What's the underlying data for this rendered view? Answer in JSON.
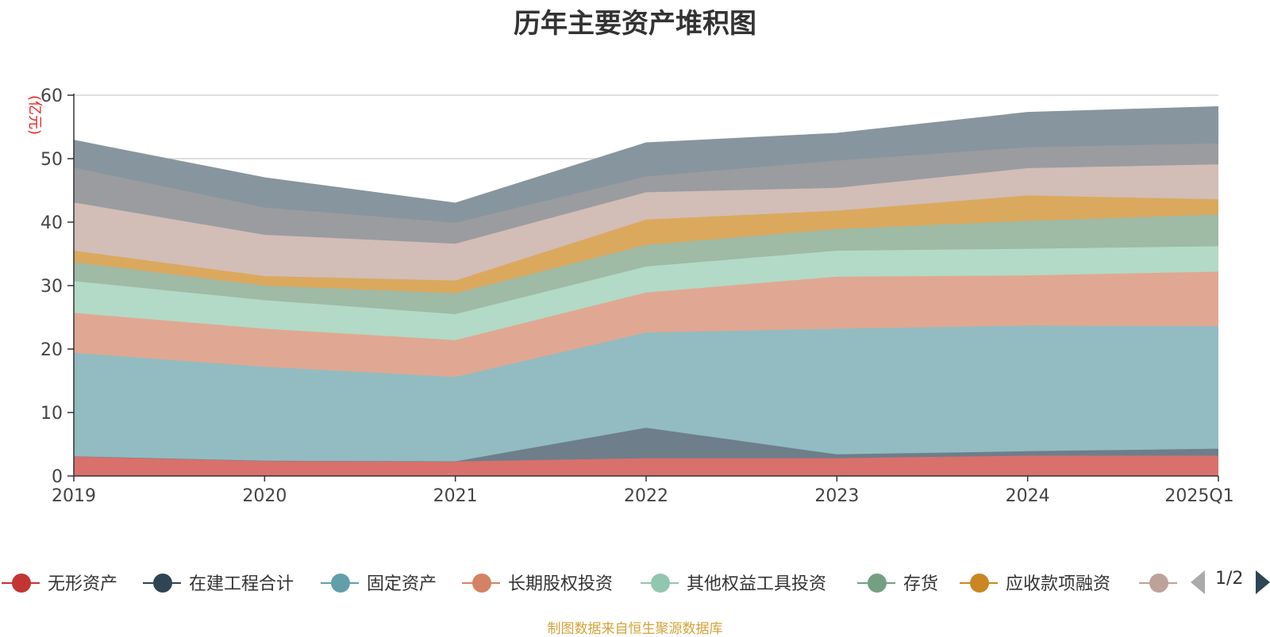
{
  "chart_data": {
    "type": "area",
    "stacked": true,
    "title": "历年主要资产堆积图",
    "unit_label": "(亿元)",
    "categories": [
      "2019",
      "2020",
      "2021",
      "2022",
      "2023",
      "2024",
      "2025Q1"
    ],
    "y_ticks": [
      "0",
      "10",
      "20",
      "30",
      "40",
      "50",
      "60"
    ],
    "ylim": [
      0,
      60
    ],
    "grid": true,
    "legend_position": "bottom",
    "series": [
      {
        "name": "无形资产",
        "color": "#c23531",
        "fill": "#d9706c",
        "values": [
          3.1,
          2.4,
          2.3,
          2.8,
          2.8,
          3.2,
          3.2
        ]
      },
      {
        "name": "在建工程合计",
        "color": "#2f4554",
        "fill": "#6e7e8a",
        "values": [
          0.0,
          0.0,
          0.0,
          4.8,
          0.6,
          0.7,
          1.1
        ]
      },
      {
        "name": "固定资产",
        "color": "#61a0a8",
        "fill": "#92bcc1",
        "values": [
          16.3,
          14.8,
          13.3,
          15.0,
          19.8,
          19.8,
          19.3
        ]
      },
      {
        "name": "长期股权投资",
        "color": "#d48265",
        "fill": "#e0a892",
        "values": [
          6.3,
          6.0,
          5.8,
          6.3,
          8.2,
          7.9,
          8.6
        ]
      },
      {
        "name": "其他权益工具投资",
        "color": "#91c7ae",
        "fill": "#b2dac7",
        "values": [
          5.0,
          4.5,
          4.1,
          4.1,
          4.1,
          4.2,
          4.0
        ]
      },
      {
        "name": "存货",
        "color": "#749f83",
        "fill": "#9fbaa5",
        "values": [
          3.0,
          2.3,
          3.3,
          3.4,
          3.4,
          4.4,
          5.0
        ]
      },
      {
        "name": "应收款项融资",
        "color": "#ca8622",
        "fill": "#dba95e",
        "values": [
          1.8,
          1.5,
          2.0,
          4.0,
          2.9,
          4.0,
          2.4
        ]
      },
      {
        "name": "",
        "color": "#bda29a",
        "fill": "#d2bdb7",
        "values": [
          7.6,
          6.5,
          5.8,
          4.3,
          3.6,
          4.3,
          5.5
        ]
      },
      {
        "name": "",
        "color": "#6e7074",
        "fill": "#9a9ca0",
        "values": [
          5.5,
          4.3,
          3.3,
          2.5,
          4.3,
          3.3,
          3.3
        ]
      },
      {
        "name": "",
        "color": "#546570",
        "fill": "#87959e",
        "values": [
          4.3,
          4.7,
          3.1,
          5.3,
          4.3,
          5.5,
          5.8
        ]
      }
    ]
  },
  "legend": {
    "page_label": "1/2",
    "items": [
      {
        "label": "无形资产",
        "color": "#c23531"
      },
      {
        "label": "在建工程合计",
        "color": "#2f4554"
      },
      {
        "label": "固定资产",
        "color": "#61a0a8"
      },
      {
        "label": "长期股权投资",
        "color": "#d48265"
      },
      {
        "label": "其他权益工具投资",
        "color": "#91c7ae"
      },
      {
        "label": "存货",
        "color": "#749f83"
      },
      {
        "label": "应收款项融资",
        "color": "#ca8622"
      },
      {
        "label": "",
        "color": "#bda29a"
      }
    ]
  },
  "source_note": "制图数据来自恒生聚源数据库"
}
